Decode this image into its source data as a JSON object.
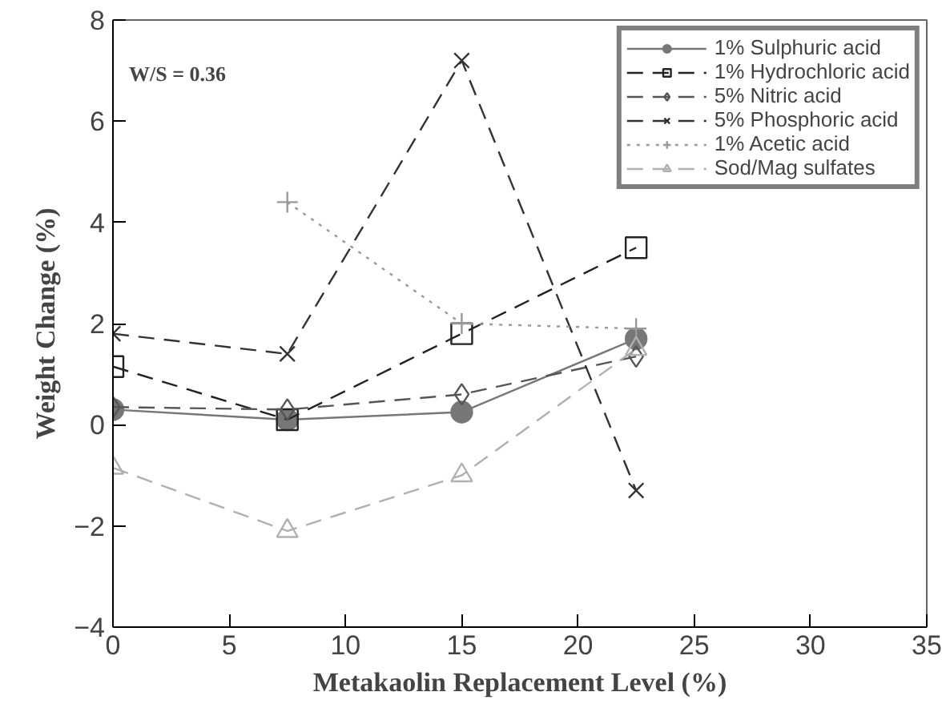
{
  "chart_data": {
    "type": "line",
    "xlabel": "Metakaolin Replacement Level (%)",
    "ylabel": "Weight Change (%)",
    "x": [
      0,
      7.5,
      15,
      22.5
    ],
    "xlim": [
      0,
      35
    ],
    "xticks": [
      0,
      5,
      10,
      15,
      20,
      25,
      30,
      35
    ],
    "ylim": [
      -4,
      8
    ],
    "yticks": [
      -4,
      -2,
      0,
      2,
      4,
      6,
      8
    ],
    "grid": false,
    "legend": "top right",
    "annotations": [
      "W/S = 0.36"
    ],
    "series": [
      {
        "name": "1% Sulphuric acid",
        "color": "#777777",
        "marker": "circle",
        "line_style": "solid",
        "values": [
          0.3,
          0.1,
          0.25,
          1.7
        ]
      },
      {
        "name": "1% Hydrochloric acid",
        "color": "#222222",
        "marker": "square",
        "line_style": "dashed",
        "values": [
          1.15,
          0.1,
          1.8,
          3.5
        ]
      },
      {
        "name": "5% Nitric acid",
        "color": "#555555",
        "marker": "diamond",
        "line_style": "dashed",
        "values": [
          0.35,
          0.3,
          0.6,
          1.35
        ]
      },
      {
        "name": "5% Phosphoric acid",
        "color": "#333333",
        "marker": "cross",
        "line_style": "dashed",
        "values": [
          1.8,
          1.4,
          7.2,
          -1.3
        ]
      },
      {
        "name": "1% Acetic acid",
        "color": "#999999",
        "marker": "plus",
        "line_style": "dotted",
        "values": [
          null,
          4.4,
          2.0,
          1.9
        ]
      },
      {
        "name": "Sod/Mag sulfates",
        "color": "#b0b0b0",
        "marker": "triangle",
        "line_style": "dashed",
        "values": [
          -0.85,
          -2.1,
          -1.0,
          1.5
        ]
      }
    ]
  }
}
